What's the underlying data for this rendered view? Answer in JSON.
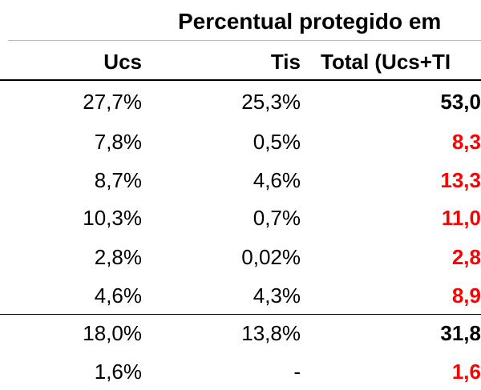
{
  "table": {
    "title": "Percentual protegido em",
    "headers": [
      "Ucs",
      "Tis",
      "Total (Ucs+TI"
    ],
    "rows": [
      {
        "cells": [
          "27,7%",
          "25,3%",
          "53,0"
        ],
        "total_color": "#000000"
      },
      {
        "cells": [
          "7,8%",
          "0,5%",
          "8,3"
        ],
        "total_color": "#ff0000"
      },
      {
        "cells": [
          "8,7%",
          "4,6%",
          "13,3"
        ],
        "total_color": "#ff0000"
      },
      {
        "cells": [
          "10,3%",
          "0,7%",
          "11,0"
        ],
        "total_color": "#ff0000"
      },
      {
        "cells": [
          "2,8%",
          "0,02%",
          "2,8"
        ],
        "total_color": "#ff0000"
      },
      {
        "cells": [
          "4,6%",
          "4,3%",
          "8,9"
        ],
        "total_color": "#ff0000"
      },
      {
        "cells": [
          "18,0%",
          "13,8%",
          "31,8"
        ],
        "total_color": "#000000"
      },
      {
        "cells": [
          "1,6%",
          "-",
          "1,6"
        ],
        "total_color": "#ff0000"
      }
    ]
  }
}
